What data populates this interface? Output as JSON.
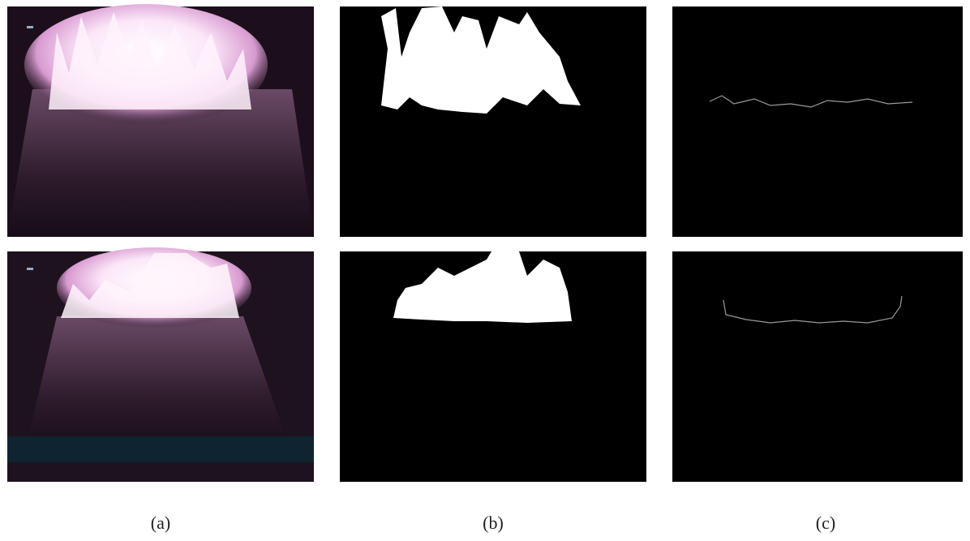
{
  "captions": [
    "(a)",
    "(b)",
    "(c)"
  ]
}
